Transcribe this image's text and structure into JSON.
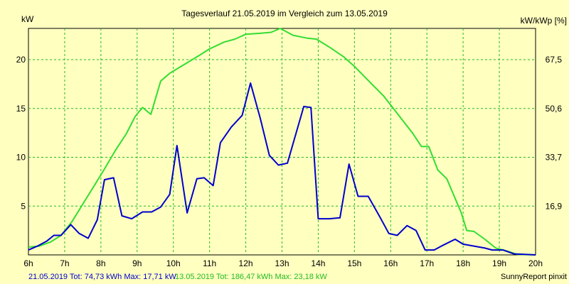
{
  "chart_data": {
    "type": "line",
    "title": "Tagesverlauf 21.05.2019 im Vergleich zum 13.05.2019",
    "ylabel_left": "kW",
    "ylabel_right": "kW/kWp [%]",
    "xlim": [
      6,
      20
    ],
    "ylim": [
      0,
      23.2
    ],
    "x_ticks": [
      "6h",
      "7h",
      "8h",
      "9h",
      "10h",
      "11h",
      "12h",
      "13h",
      "14h",
      "15h",
      "16h",
      "17h",
      "18h",
      "19h",
      "20h"
    ],
    "y_ticks_left": [
      "5",
      "10",
      "15",
      "20"
    ],
    "y_ticks_right": [
      "16,9",
      "33,7",
      "50,6",
      "67,5"
    ],
    "grid": true,
    "series": [
      {
        "name": "21.05.2019",
        "color": "#0000cc",
        "points": [
          [
            6.0,
            0.5
          ],
          [
            6.25,
            0.9
          ],
          [
            6.5,
            1.4
          ],
          [
            6.7,
            2.0
          ],
          [
            6.9,
            2.0
          ],
          [
            7.17,
            3.1
          ],
          [
            7.4,
            2.2
          ],
          [
            7.65,
            1.7
          ],
          [
            7.9,
            3.6
          ],
          [
            8.1,
            7.7
          ],
          [
            8.35,
            7.9
          ],
          [
            8.58,
            4.0
          ],
          [
            8.85,
            3.7
          ],
          [
            9.15,
            4.4
          ],
          [
            9.4,
            4.4
          ],
          [
            9.65,
            4.9
          ],
          [
            9.9,
            6.2
          ],
          [
            10.1,
            11.2
          ],
          [
            10.38,
            4.3
          ],
          [
            10.65,
            7.8
          ],
          [
            10.85,
            7.9
          ],
          [
            11.1,
            7.1
          ],
          [
            11.3,
            11.5
          ],
          [
            11.6,
            13.1
          ],
          [
            11.9,
            14.3
          ],
          [
            12.13,
            17.6
          ],
          [
            12.4,
            14.0
          ],
          [
            12.65,
            10.2
          ],
          [
            12.9,
            9.2
          ],
          [
            13.15,
            9.4
          ],
          [
            13.6,
            15.2
          ],
          [
            13.8,
            15.1
          ],
          [
            14.0,
            3.7
          ],
          [
            14.3,
            3.7
          ],
          [
            14.6,
            3.8
          ],
          [
            14.85,
            9.3
          ],
          [
            15.1,
            6.0
          ],
          [
            15.38,
            6.0
          ],
          [
            15.7,
            3.9
          ],
          [
            15.95,
            2.2
          ],
          [
            16.18,
            2.0
          ],
          [
            16.45,
            3.0
          ],
          [
            16.7,
            2.5
          ],
          [
            16.95,
            0.5
          ],
          [
            17.2,
            0.5
          ],
          [
            17.45,
            1.0
          ],
          [
            17.78,
            1.6
          ],
          [
            18.0,
            1.1
          ],
          [
            18.3,
            0.9
          ],
          [
            18.6,
            0.7
          ],
          [
            18.8,
            0.5
          ],
          [
            19.1,
            0.5
          ],
          [
            19.4,
            0.1
          ],
          [
            19.7,
            0.05
          ],
          [
            20.0,
            0.0
          ]
        ]
      },
      {
        "name": "13.05.2019",
        "color": "#33dd33",
        "points": [
          [
            6.0,
            0.8
          ],
          [
            6.3,
            0.9
          ],
          [
            6.6,
            1.3
          ],
          [
            6.9,
            2.0
          ],
          [
            7.2,
            3.4
          ],
          [
            7.5,
            5.2
          ],
          [
            7.8,
            7.0
          ],
          [
            8.1,
            8.8
          ],
          [
            8.4,
            10.7
          ],
          [
            8.7,
            12.4
          ],
          [
            8.95,
            14.2
          ],
          [
            9.15,
            15.1
          ],
          [
            9.38,
            14.4
          ],
          [
            9.65,
            17.8
          ],
          [
            9.9,
            18.6
          ],
          [
            10.3,
            19.5
          ],
          [
            10.7,
            20.4
          ],
          [
            11.0,
            21.1
          ],
          [
            11.4,
            21.8
          ],
          [
            11.7,
            22.1
          ],
          [
            12.0,
            22.6
          ],
          [
            12.4,
            22.7
          ],
          [
            12.7,
            22.8
          ],
          [
            12.95,
            23.2
          ],
          [
            13.3,
            22.5
          ],
          [
            13.7,
            22.2
          ],
          [
            13.95,
            22.1
          ],
          [
            14.3,
            21.3
          ],
          [
            14.7,
            20.3
          ],
          [
            15.0,
            19.3
          ],
          [
            15.4,
            17.8
          ],
          [
            15.8,
            16.3
          ],
          [
            16.2,
            14.4
          ],
          [
            16.6,
            12.5
          ],
          [
            16.85,
            11.1
          ],
          [
            17.05,
            11.1
          ],
          [
            17.3,
            8.7
          ],
          [
            17.55,
            7.8
          ],
          [
            17.8,
            5.6
          ],
          [
            17.95,
            4.3
          ],
          [
            18.1,
            2.5
          ],
          [
            18.3,
            2.4
          ],
          [
            18.6,
            1.6
          ],
          [
            18.9,
            0.7
          ],
          [
            19.2,
            0.4
          ],
          [
            19.5,
            0.05
          ],
          [
            20.0,
            0.0
          ]
        ]
      }
    ],
    "footer_left": "21.05.2019 Tot: 74,73 kWh Max: 17,71 kW",
    "footer_mid": "13.05.2019 Tot: 186,47 kWh Max: 23,18 kW",
    "footer_right": "SunnyReport pinxit"
  }
}
